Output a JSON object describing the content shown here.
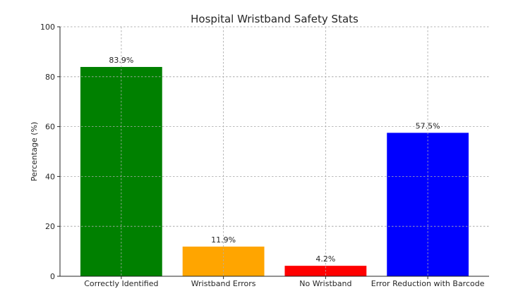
{
  "chart_data": {
    "type": "bar",
    "title": "Hospital Wristband Safety Stats",
    "xlabel": "",
    "ylabel": "Percentage (%)",
    "ylim": [
      0,
      100
    ],
    "yticks": [
      0,
      20,
      40,
      60,
      80,
      100
    ],
    "grid": true,
    "categories": [
      "Correctly Identified",
      "Wristband Errors",
      "No Wristband",
      "Error Reduction with Barcode"
    ],
    "values": [
      83.9,
      11.9,
      4.2,
      57.5
    ],
    "value_labels": [
      "83.9%",
      "11.9%",
      "4.2%",
      "57.5%"
    ],
    "colors": [
      "#008000",
      "#ffa500",
      "#ff0000",
      "#0000ff"
    ]
  }
}
